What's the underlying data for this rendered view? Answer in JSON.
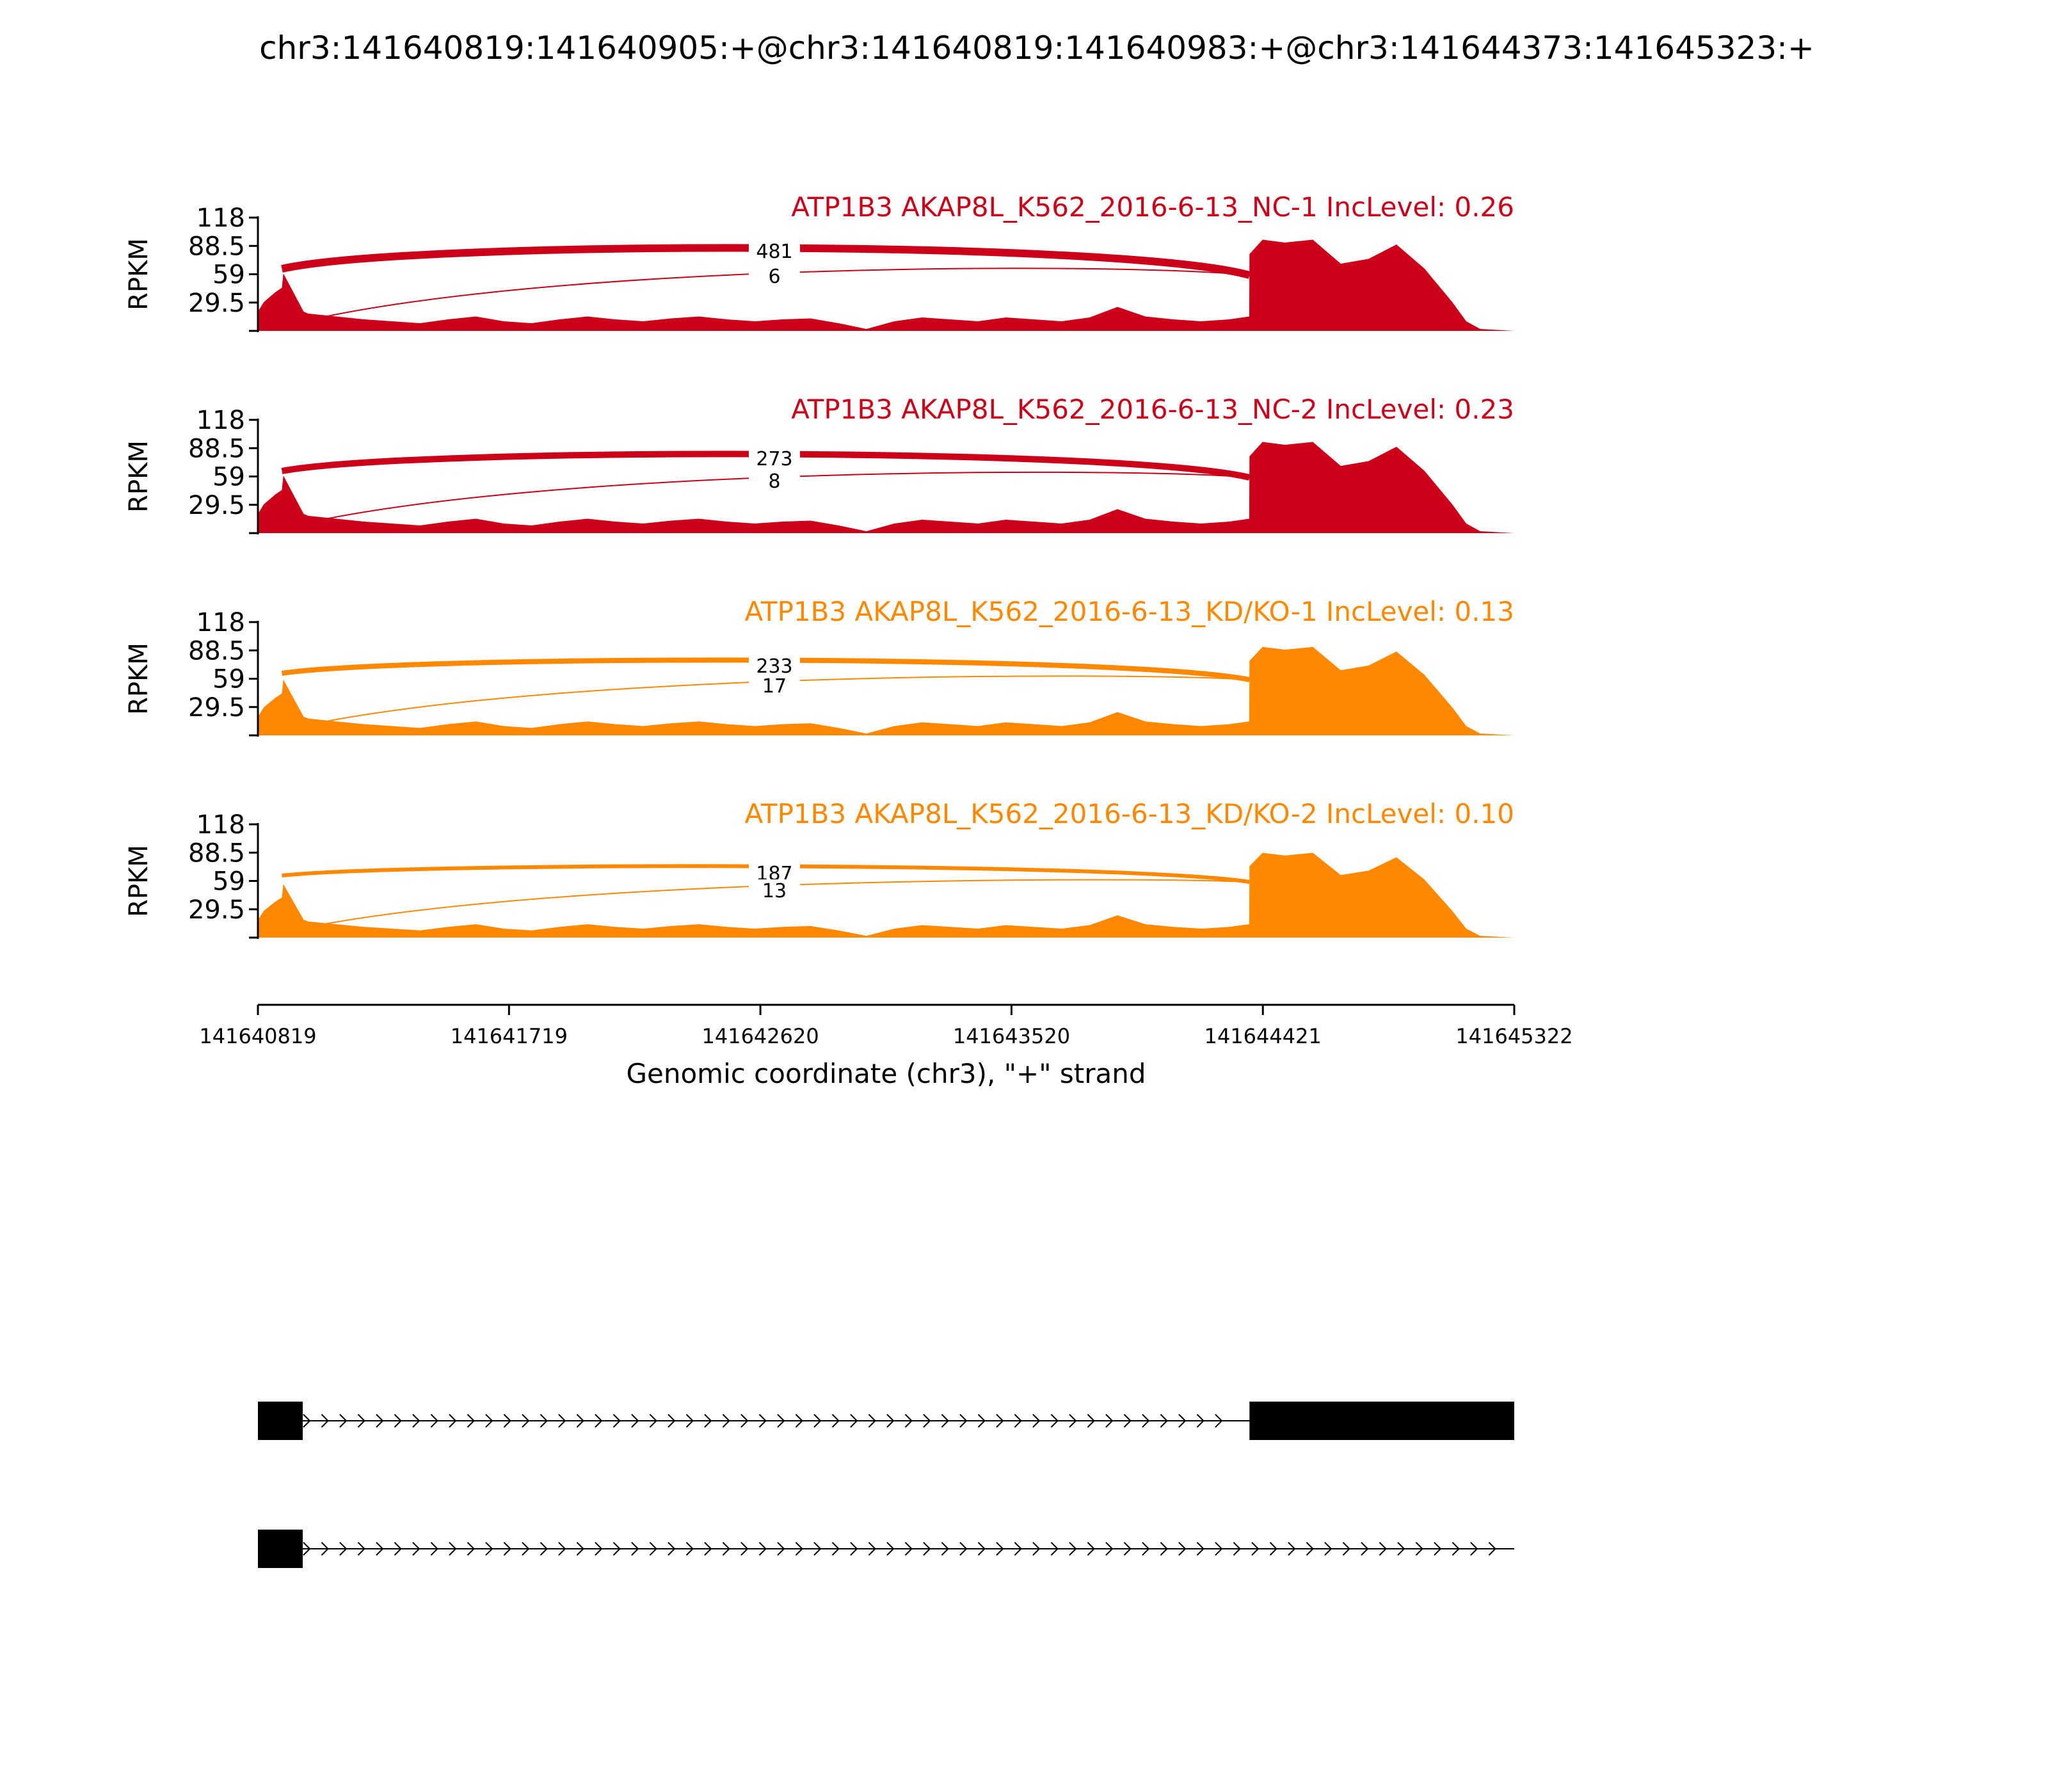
{
  "title": "chr3:141640819:141640905:+@chr3:141640819:141640983:+@chr3:141644373:141645323:+",
  "chart_data": {
    "type": "area",
    "x_range": [
      141640819,
      141645322
    ],
    "xlabel": "Genomic coordinate (chr3), \"+\" strand",
    "xticks": [
      141640819,
      141641719,
      141642620,
      141643520,
      141644421,
      141645322
    ],
    "ylabel": "RPKM",
    "yticks": [
      "118",
      "88.5",
      "59",
      "29.5"
    ],
    "ylim": [
      0,
      118
    ],
    "colors": {
      "nc": "#cc0019",
      "kd": "#ff8800"
    },
    "coverage_profile": {
      "x": [
        141640819,
        141640840,
        141640880,
        141640905,
        141640910,
        141640983,
        141641000,
        141641100,
        141641200,
        141641300,
        141641400,
        141641500,
        141641600,
        141641700,
        141641800,
        141641900,
        141642000,
        141642100,
        141642200,
        141642300,
        141642400,
        141642500,
        141642600,
        141642700,
        141642800,
        141642900,
        141643000,
        141643100,
        141643200,
        141643300,
        141643400,
        141643500,
        141643600,
        141643700,
        141643800,
        141643900,
        141644000,
        141644100,
        141644200,
        141644300,
        141644372,
        141644373,
        141644420,
        141644500,
        141644600,
        141644700,
        141644800,
        141644900,
        141645000,
        141645100,
        141645150,
        141645200,
        141645322
      ],
      "y": [
        20,
        30,
        40,
        45,
        60,
        20,
        18,
        15,
        12,
        10,
        8,
        12,
        15,
        10,
        8,
        12,
        15,
        12,
        10,
        13,
        15,
        12,
        10,
        12,
        13,
        8,
        2,
        10,
        14,
        12,
        10,
        14,
        12,
        10,
        14,
        25,
        15,
        12,
        10,
        12,
        15,
        80,
        95,
        92,
        95,
        70,
        75,
        90,
        65,
        30,
        10,
        2,
        0
      ]
    },
    "series": [
      {
        "name": "ATP1B3 AKAP8L_K562_2016-6-13_NC-1",
        "inc_level": "0.26",
        "label": "ATP1B3 AKAP8L_K562_2016-6-13_NC-1 IncLevel: 0.26",
        "color": "#cc0019",
        "scale": 1.0,
        "junctions": [
          {
            "count": "481",
            "weight": "thick"
          },
          {
            "count": "6",
            "weight": "thin"
          }
        ]
      },
      {
        "name": "ATP1B3 AKAP8L_K562_2016-6-13_NC-2",
        "inc_level": "0.23",
        "label": "ATP1B3 AKAP8L_K562_2016-6-13_NC-2 IncLevel: 0.23",
        "color": "#cc0019",
        "scale": 1.0,
        "junctions": [
          {
            "count": "273",
            "weight": "thick"
          },
          {
            "count": "8",
            "weight": "thin"
          }
        ]
      },
      {
        "name": "ATP1B3 AKAP8L_K562_2016-6-13_KD/KO-1",
        "inc_level": "0.13",
        "label": "ATP1B3 AKAP8L_K562_2016-6-13_KD/KO-1 IncLevel: 0.13",
        "color": "#ff8800",
        "scale": 0.97,
        "junctions": [
          {
            "count": "233",
            "weight": "thick"
          },
          {
            "count": "17",
            "weight": "thin"
          }
        ]
      },
      {
        "name": "ATP1B3 AKAP8L_K562_2016-6-13_KD/KO-2",
        "inc_level": "0.10",
        "label": "ATP1B3 AKAP8L_K562_2016-6-13_KD/KO-2 IncLevel: 0.10",
        "color": "#ff8800",
        "scale": 0.93,
        "junctions": [
          {
            "count": "187",
            "weight": "thick"
          },
          {
            "count": "13",
            "weight": "thin"
          }
        ]
      }
    ],
    "isoforms": [
      {
        "exons": [
          [
            141640819,
            141640905
          ],
          [
            141644373,
            141645322
          ]
        ]
      },
      {
        "exons": [
          [
            141640819,
            141640905
          ]
        ]
      }
    ]
  }
}
